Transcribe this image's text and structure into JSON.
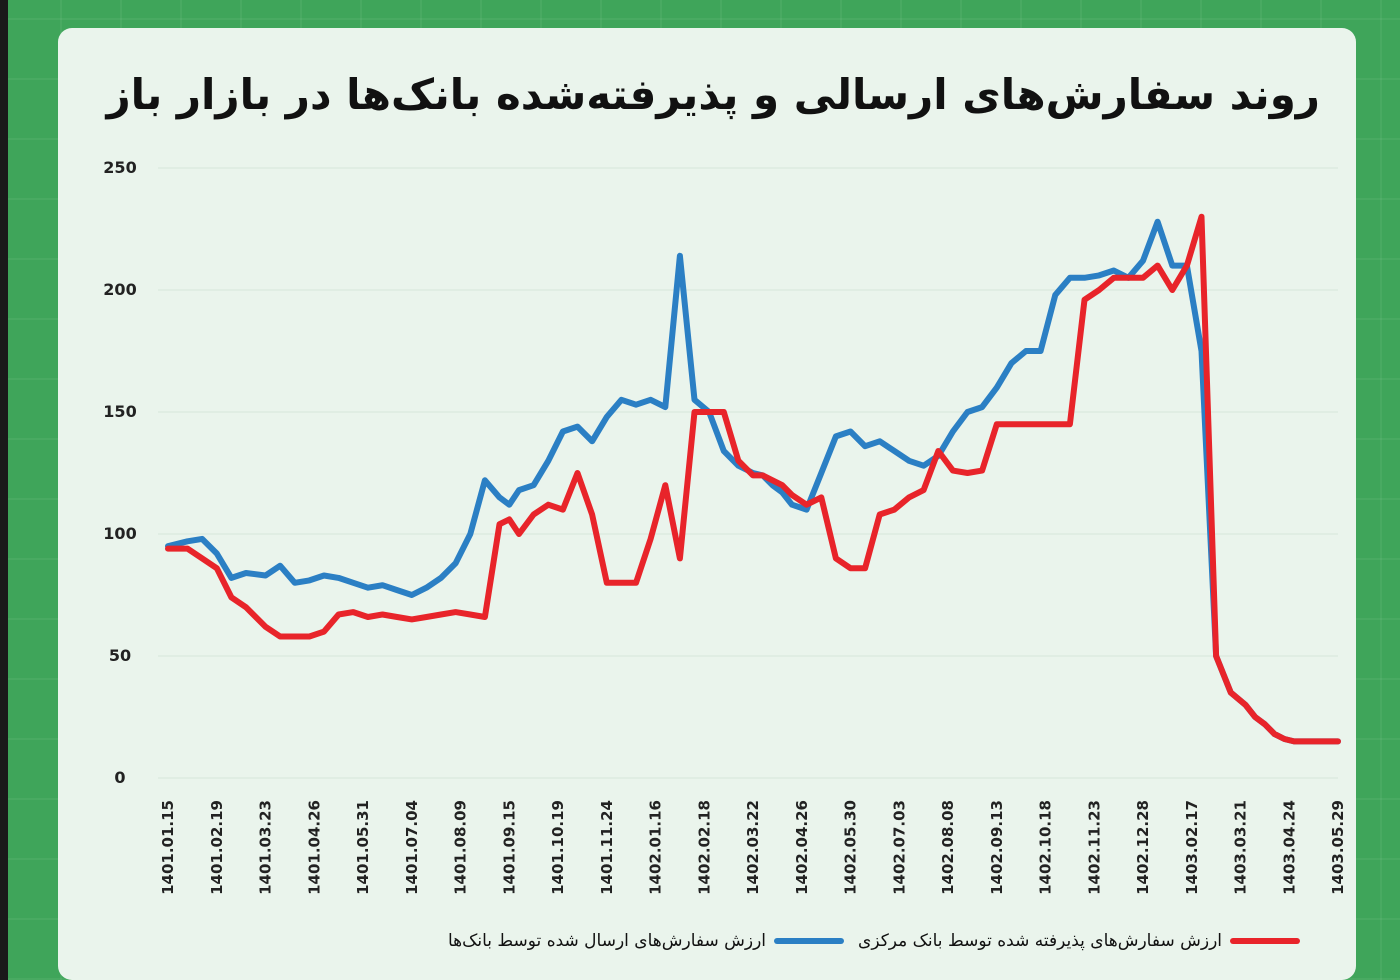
{
  "chart_data": {
    "type": "line",
    "title": "روند سفارش‌های ارسالی و پذیرفته‌شده بانک‌ها در بازار باز",
    "ylim": [
      0,
      250
    ],
    "y_ticks": [
      "0",
      "50",
      "100",
      "150",
      "200",
      "250"
    ],
    "y_tick_values": [
      0,
      50,
      100,
      150,
      200,
      250
    ],
    "categories": [
      "1401.01.15",
      "1401.02.19",
      "1401.03.23",
      "1401.04.26",
      "1401.05.31",
      "1401.07.04",
      "1401.08.09",
      "1401.09.15",
      "1401.10.19",
      "1401.11.24",
      "1402.01.16",
      "1402.02.18",
      "1402.03.22",
      "1402.04.26",
      "1402.05.30",
      "1402.07.03",
      "1402.08.08",
      "1402.09.13",
      "1402.10.18",
      "1402.11.23",
      "1402.12.28",
      "1403.02.17",
      "1403.03.21",
      "1403.04.24",
      "1403.05.29"
    ],
    "grid": true,
    "legend_position": "bottom",
    "series": [
      {
        "name": "ارزش سفارش‌های ارسال شده توسط بانک‌ها",
        "color": "#2b7fc4",
        "x": [
          0,
          0.4,
          0.7,
          1.0,
          1.3,
          1.6,
          2.0,
          2.3,
          2.6,
          2.9,
          3.2,
          3.5,
          3.8,
          4.1,
          4.4,
          4.7,
          5.0,
          5.3,
          5.6,
          5.9,
          6.2,
          6.5,
          6.8,
          7.0,
          7.2,
          7.5,
          7.8,
          8.1,
          8.4,
          8.7,
          9.0,
          9.3,
          9.6,
          9.9,
          10.2,
          10.5,
          10.8,
          11.1,
          11.4,
          11.7,
          12.0,
          12.2,
          12.4,
          12.6,
          12.8,
          13.1,
          13.4,
          13.7,
          14.0,
          14.3,
          14.6,
          14.9,
          15.2,
          15.5,
          15.8,
          16.1,
          16.4,
          16.7,
          17.0,
          17.3,
          17.6,
          17.9,
          18.2,
          18.5,
          18.8,
          19.1,
          19.4,
          19.7,
          20.0,
          20.3,
          20.6,
          20.9,
          21.2,
          21.5,
          21.8,
          22.1,
          22.3,
          22.5,
          22.7,
          22.9,
          23.1,
          23.4,
          23.7,
          24.0
        ],
        "values": [
          95,
          97,
          98,
          92,
          82,
          84,
          83,
          87,
          80,
          81,
          83,
          82,
          80,
          78,
          79,
          77,
          75,
          78,
          82,
          88,
          100,
          122,
          115,
          112,
          118,
          120,
          130,
          142,
          144,
          138,
          148,
          155,
          153,
          155,
          152,
          214,
          155,
          150,
          134,
          128,
          125,
          124,
          120,
          117,
          112,
          110,
          125,
          140,
          142,
          136,
          138,
          134,
          130,
          128,
          132,
          142,
          150,
          152,
          160,
          170,
          175,
          175,
          198,
          205,
          205,
          206,
          208,
          205,
          212,
          228,
          210,
          210,
          175,
          50,
          35,
          30,
          25,
          22,
          18,
          16,
          15,
          15,
          15,
          15
        ],
        "x2": [],
        "values2": []
      },
      {
        "name": "ارزش سفارش‌های پذیرفته شده توسط بانک مرکزی",
        "color": "#e8242a",
        "x": [
          0,
          0.4,
          0.7,
          1.0,
          1.3,
          1.6,
          2.0,
          2.3,
          2.6,
          2.9,
          3.2,
          3.5,
          3.8,
          4.1,
          4.4,
          4.7,
          5.0,
          5.3,
          5.6,
          5.9,
          6.2,
          6.5,
          6.8,
          7.0,
          7.2,
          7.5,
          7.8,
          8.1,
          8.4,
          8.7,
          9.0,
          9.3,
          9.6,
          9.9,
          10.2,
          10.5,
          10.8,
          11.1,
          11.4,
          11.7,
          12.0,
          12.2,
          12.4,
          12.6,
          12.8,
          13.1,
          13.4,
          13.7,
          14.0,
          14.3,
          14.6,
          14.9,
          15.2,
          15.5,
          15.8,
          16.1,
          16.4,
          16.7,
          17.0,
          17.3,
          17.6,
          17.9,
          18.2,
          18.5,
          18.8,
          19.1,
          19.4,
          19.7,
          20.0,
          20.3,
          20.6,
          20.9,
          21.2,
          21.5,
          21.8,
          22.1,
          22.3,
          22.5,
          22.7,
          22.9,
          23.1,
          23.4,
          23.7,
          24.0
        ],
        "values": [
          94,
          94,
          90,
          86,
          74,
          70,
          62,
          58,
          58,
          58,
          60,
          67,
          68,
          66,
          67,
          66,
          65,
          66,
          67,
          68,
          67,
          66,
          104,
          106,
          100,
          108,
          112,
          110,
          125,
          108,
          80,
          80,
          80,
          98,
          120,
          90,
          150,
          150,
          150,
          130,
          124,
          124,
          122,
          120,
          116,
          112,
          115,
          90,
          86,
          86,
          108,
          110,
          115,
          118,
          134,
          126,
          125,
          126,
          145,
          145,
          145,
          145,
          145,
          145,
          196,
          200,
          205,
          205,
          205,
          210,
          200,
          210,
          230,
          50,
          35,
          30,
          25,
          22,
          18,
          16,
          15,
          15,
          15,
          15
        ],
        "x2": [],
        "values2": []
      }
    ]
  }
}
